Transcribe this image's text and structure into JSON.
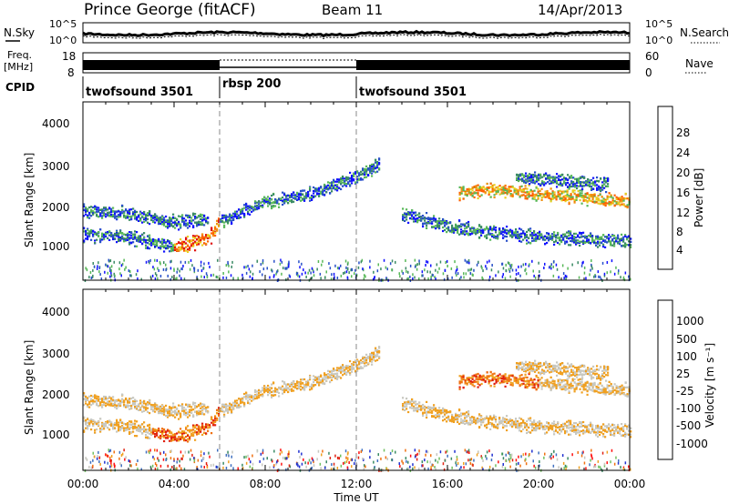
{
  "header": {
    "station": "Prince George (fitACF)",
    "beam": "Beam 11",
    "date": "14/Apr/2013"
  },
  "left_labels": {
    "nsky": "N.Sky",
    "freq_line1": "Freq.",
    "freq_line2": "[MHz]",
    "cpid": "CPID"
  },
  "right_labels": {
    "nsearch": "N.Search",
    "nave": "Nave"
  },
  "noise_panel": {
    "left_ticks": [
      "10^5",
      "10^0"
    ],
    "right_ticks": [
      "10^5",
      "10^0"
    ]
  },
  "freq_panel": {
    "left_ticks": [
      "18",
      "8"
    ],
    "right_ticks": [
      "60",
      "0"
    ]
  },
  "cpid_segments": [
    {
      "label": "twofsound 3501",
      "start_hr": 0,
      "end_hr": 6
    },
    {
      "label": "rbsp 200",
      "start_hr": 6,
      "end_hr": 12
    },
    {
      "label": "twofsound 3501",
      "start_hr": 12,
      "end_hr": 24
    }
  ],
  "x_axis": {
    "label": "Time UT",
    "ticks": [
      "00:00",
      "04:00",
      "08:00",
      "12:00",
      "16:00",
      "20:00",
      "00:00"
    ]
  },
  "y_axis": {
    "label": "Slant Range [km]",
    "ticks": [
      "1000",
      "2000",
      "3000",
      "4000"
    ]
  },
  "power_colorbar": {
    "label": "Power [dB]",
    "ticks": [
      "4",
      "8",
      "12",
      "16",
      "20",
      "24",
      "28"
    ],
    "colors": [
      "#1010ff",
      "#2850c8",
      "#3a8a64",
      "#58b858",
      "#e8d020",
      "#f09010",
      "#ff6000",
      "#e01010"
    ]
  },
  "velocity_colorbar": {
    "label": "Velocity [m s⁻¹]",
    "ticks": [
      "1000",
      "500",
      "100",
      "25",
      "-25",
      "-100",
      "-500",
      "-1000"
    ],
    "colors": [
      "#2030d0",
      "#4070c0",
      "#3a8a64",
      "#70c060",
      "#c8c8c0",
      "#f0a020",
      "#f07010",
      "#e02010",
      "#ff1010"
    ]
  },
  "chart_data": {
    "type": "heatmap",
    "x_range_hours": [
      0,
      24
    ],
    "y_range_km": [
      180,
      4500
    ],
    "grid": false,
    "scatter_bands": [
      {
        "name": "",
        "points": [
          [
            0,
            1300
          ],
          [
            2,
            1250
          ],
          [
            4,
            1000
          ],
          [
            5.5,
            1200
          ],
          [
            6,
            1600
          ],
          [
            8,
            2100
          ],
          [
            10,
            2300
          ],
          [
            12,
            2700
          ],
          [
            13,
            3000
          ]
        ]
      },
      {
        "name": "",
        "points": [
          [
            0,
            1900
          ],
          [
            2,
            1800
          ],
          [
            4,
            1600
          ],
          [
            5.5,
            1700
          ]
        ]
      },
      {
        "name": "",
        "points": [
          [
            14,
            1800
          ],
          [
            16,
            1500
          ],
          [
            18,
            1350
          ],
          [
            20,
            1250
          ],
          [
            22,
            1200
          ],
          [
            24,
            1150
          ]
        ]
      },
      {
        "name": "",
        "points": [
          [
            16.5,
            2300
          ],
          [
            18,
            2400
          ],
          [
            20,
            2300
          ],
          [
            22,
            2200
          ],
          [
            24,
            2100
          ]
        ]
      },
      {
        "name": "",
        "points": [
          [
            19,
            2700
          ],
          [
            21,
            2600
          ],
          [
            23,
            2500
          ]
        ]
      }
    ]
  }
}
